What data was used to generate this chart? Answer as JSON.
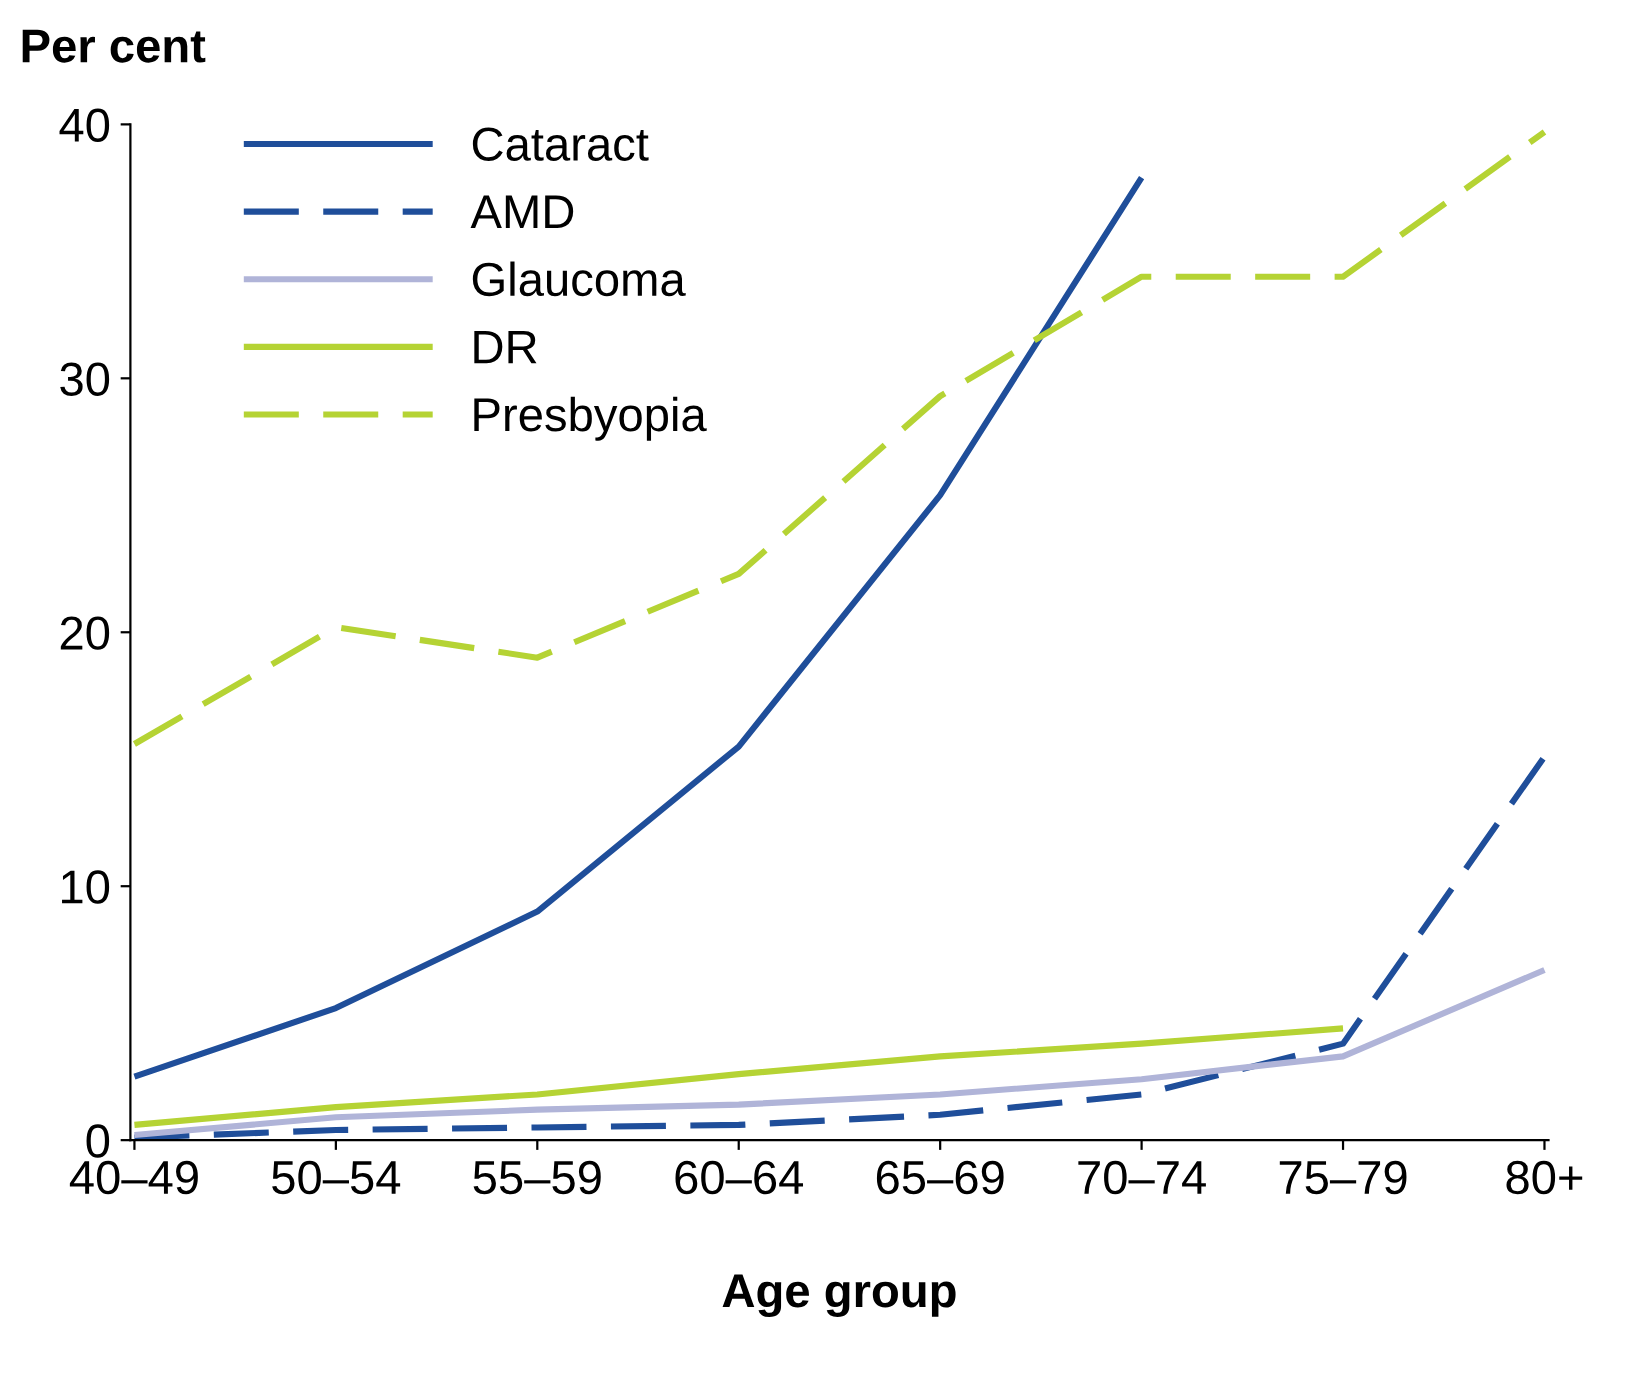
{
  "chart_data": {
    "type": "line",
    "ylabel": "Per cent",
    "xlabel": "Age group",
    "categories": [
      "40–49",
      "50–54",
      "55–59",
      "60–64",
      "65–69",
      "70–74",
      "75–79",
      "80+"
    ],
    "ylim": [
      0,
      40
    ],
    "yticks": [
      0,
      10,
      20,
      30,
      40
    ],
    "grid": false,
    "legend": "top left",
    "marker": "none",
    "series": [
      {
        "name": "Cataract",
        "color": "#1f4e9a",
        "line_style": "solid",
        "values": [
          2.5,
          5.2,
          9.0,
          15.5,
          25.4,
          37.9,
          null,
          null
        ]
      },
      {
        "name": "AMD",
        "color": "#1f4e9a",
        "line_style": "dashed",
        "values": [
          0.1,
          0.4,
          0.5,
          0.6,
          1.0,
          1.8,
          3.8,
          15.1
        ]
      },
      {
        "name": "Glaucoma",
        "color": "#b0b4d8",
        "line_style": "solid",
        "values": [
          0.2,
          0.9,
          1.2,
          1.4,
          1.8,
          2.4,
          3.3,
          6.7
        ]
      },
      {
        "name": "DR",
        "color": "#b5d334",
        "line_style": "solid",
        "values": [
          0.6,
          1.3,
          1.8,
          2.6,
          3.3,
          3.8,
          4.4,
          null
        ]
      },
      {
        "name": "Presbyopia",
        "color": "#b5d334",
        "line_style": "dashed",
        "values": [
          15.6,
          20.2,
          19.0,
          22.3,
          29.3,
          34.0,
          34.0,
          39.7
        ]
      }
    ]
  }
}
